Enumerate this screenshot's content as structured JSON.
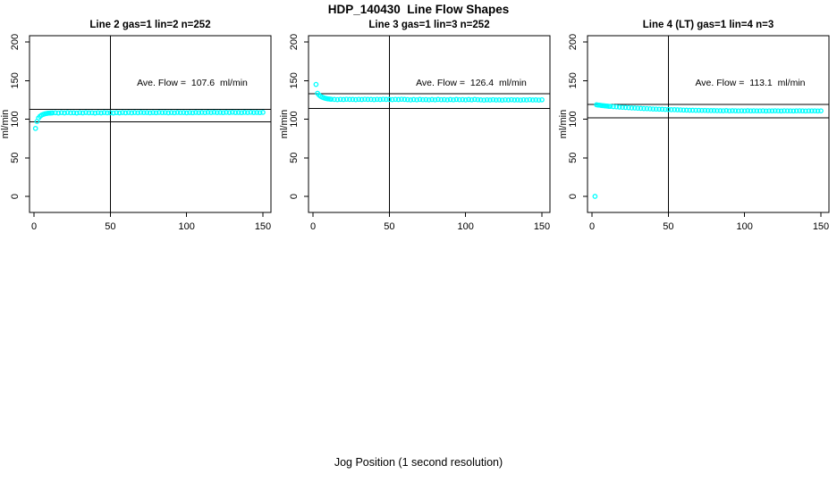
{
  "title": "HDP_140430  Line Flow Shapes",
  "xlabel": "Jog Position (1 second resolution)",
  "colors": {
    "points": "#00FFFF",
    "axis": "#000000",
    "background": "#ffffff"
  },
  "chart_data": [
    {
      "type": "scatter",
      "title": "Line 2 gas=1 lin=2 n=252",
      "n": 252,
      "ylabel": "ml/min",
      "ave_flow": 107.6,
      "ave_flow_label": "Ave. Flow =  107.6  ml/min",
      "xlim": [
        0,
        150
      ],
      "ylim": [
        0,
        200
      ],
      "xticks": [
        0,
        50,
        100,
        150
      ],
      "yticks": [
        0,
        50,
        100,
        150,
        200
      ],
      "vline_x": 50,
      "ref_lines": [
        113.0,
        96.8
      ],
      "points": [
        [
          1,
          88
        ],
        [
          2,
          97
        ],
        [
          3,
          101.5
        ],
        [
          4,
          103.8
        ],
        [
          5,
          105.2
        ],
        [
          6,
          106.1
        ],
        [
          7,
          106.8
        ],
        [
          8,
          107.3
        ],
        [
          9,
          107.6
        ],
        [
          10,
          107.9
        ],
        [
          11,
          108.0
        ],
        [
          12,
          108.1
        ],
        [
          14,
          108.3
        ],
        [
          16,
          108.0
        ],
        [
          18,
          108.4
        ],
        [
          20,
          108.1
        ],
        [
          22,
          108.5
        ],
        [
          24,
          108.2
        ],
        [
          26,
          108.3
        ],
        [
          28,
          108.0
        ],
        [
          30,
          108.4
        ],
        [
          32,
          108.1
        ],
        [
          34,
          108.5
        ],
        [
          36,
          108.2
        ],
        [
          38,
          108.3
        ],
        [
          40,
          108.0
        ],
        [
          42,
          108.4
        ],
        [
          44,
          108.1
        ],
        [
          46,
          108.5
        ],
        [
          48,
          108.2
        ],
        [
          50,
          108.3
        ],
        [
          52,
          108.0
        ],
        [
          54,
          108.4
        ],
        [
          56,
          108.1
        ],
        [
          58,
          108.5
        ],
        [
          60,
          108.2
        ],
        [
          62,
          108.5
        ],
        [
          64,
          108.2
        ],
        [
          66,
          108.6
        ],
        [
          68,
          108.3
        ],
        [
          70,
          108.7
        ],
        [
          72,
          108.4
        ],
        [
          74,
          108.5
        ],
        [
          76,
          108.2
        ],
        [
          78,
          108.6
        ],
        [
          80,
          108.3
        ],
        [
          82,
          108.7
        ],
        [
          84,
          108.4
        ],
        [
          86,
          108.5
        ],
        [
          88,
          108.2
        ],
        [
          90,
          108.6
        ],
        [
          92,
          108.3
        ],
        [
          94,
          108.7
        ],
        [
          96,
          108.4
        ],
        [
          98,
          108.5
        ],
        [
          100,
          108.2
        ],
        [
          102,
          108.6
        ],
        [
          104,
          108.3
        ],
        [
          106,
          108.7
        ],
        [
          108,
          108.4
        ],
        [
          110,
          108.7
        ],
        [
          112,
          108.4
        ],
        [
          114,
          108.8
        ],
        [
          116,
          108.5
        ],
        [
          118,
          108.9
        ],
        [
          120,
          108.6
        ],
        [
          122,
          108.7
        ],
        [
          124,
          108.4
        ],
        [
          126,
          108.8
        ],
        [
          128,
          108.5
        ],
        [
          130,
          108.9
        ],
        [
          132,
          108.6
        ],
        [
          134,
          108.7
        ],
        [
          136,
          108.4
        ],
        [
          138,
          108.8
        ],
        [
          140,
          108.5
        ],
        [
          142,
          108.9
        ],
        [
          144,
          108.6
        ],
        [
          146,
          108.7
        ],
        [
          148,
          108.4
        ],
        [
          150,
          108.8
        ]
      ]
    },
    {
      "type": "scatter",
      "title": "Line 3 gas=1 lin=3 n=252",
      "n": 252,
      "ylabel": "ml/min",
      "ave_flow": 126.4,
      "ave_flow_label": "Ave. Flow =  126.4  ml/min",
      "xlim": [
        0,
        150
      ],
      "ylim": [
        0,
        200
      ],
      "xticks": [
        0,
        50,
        100,
        150
      ],
      "yticks": [
        0,
        50,
        100,
        150,
        200
      ],
      "vline_x": 50,
      "ref_lines": [
        132.7,
        113.8
      ],
      "points": [
        [
          2,
          145
        ],
        [
          3,
          133.5
        ],
        [
          4,
          131.2
        ],
        [
          5,
          129.6
        ],
        [
          6,
          128.5
        ],
        [
          7,
          127.7
        ],
        [
          8,
          127.1
        ],
        [
          9,
          126.6
        ],
        [
          10,
          126.3
        ],
        [
          11,
          126.0
        ],
        [
          12,
          125.8
        ],
        [
          14,
          125.6
        ],
        [
          16,
          125.3
        ],
        [
          18,
          125.7
        ],
        [
          20,
          125.4
        ],
        [
          22,
          125.8
        ],
        [
          24,
          125.5
        ],
        [
          26,
          125.6
        ],
        [
          28,
          125.3
        ],
        [
          30,
          125.7
        ],
        [
          32,
          125.4
        ],
        [
          34,
          125.8
        ],
        [
          36,
          125.5
        ],
        [
          38,
          125.6
        ],
        [
          40,
          125.3
        ],
        [
          42,
          125.7
        ],
        [
          44,
          125.4
        ],
        [
          46,
          125.8
        ],
        [
          48,
          125.5
        ],
        [
          50,
          125.6
        ],
        [
          52,
          125.3
        ],
        [
          54,
          125.7
        ],
        [
          56,
          125.4
        ],
        [
          58,
          125.8
        ],
        [
          60,
          125.5
        ],
        [
          62,
          125.3
        ],
        [
          64,
          125.0
        ],
        [
          66,
          125.4
        ],
        [
          68,
          125.1
        ],
        [
          70,
          125.5
        ],
        [
          72,
          125.2
        ],
        [
          74,
          125.3
        ],
        [
          76,
          125.0
        ],
        [
          78,
          125.4
        ],
        [
          80,
          125.1
        ],
        [
          82,
          125.5
        ],
        [
          84,
          125.2
        ],
        [
          86,
          125.3
        ],
        [
          88,
          125.0
        ],
        [
          90,
          125.4
        ],
        [
          92,
          125.1
        ],
        [
          94,
          125.5
        ],
        [
          96,
          125.2
        ],
        [
          98,
          125.3
        ],
        [
          100,
          125.0
        ],
        [
          102,
          125.4
        ],
        [
          104,
          125.1
        ],
        [
          106,
          125.5
        ],
        [
          108,
          125.2
        ],
        [
          110,
          125.0
        ],
        [
          112,
          124.7
        ],
        [
          114,
          125.1
        ],
        [
          116,
          124.8
        ],
        [
          118,
          125.2
        ],
        [
          120,
          124.9
        ],
        [
          122,
          125.0
        ],
        [
          124,
          124.7
        ],
        [
          126,
          125.1
        ],
        [
          128,
          124.8
        ],
        [
          130,
          125.2
        ],
        [
          132,
          124.9
        ],
        [
          134,
          125.0
        ],
        [
          136,
          124.7
        ],
        [
          138,
          125.1
        ],
        [
          140,
          124.8
        ],
        [
          142,
          125.2
        ],
        [
          144,
          124.9
        ],
        [
          146,
          125.0
        ],
        [
          148,
          124.7
        ],
        [
          150,
          125.1
        ]
      ]
    },
    {
      "type": "scatter",
      "title": "Line 4 (LT) gas=1 lin=4 n=3",
      "n": 3,
      "ylabel": "ml/min",
      "ave_flow": 113.1,
      "ave_flow_label": "Ave. Flow =  113.1  ml/min",
      "xlim": [
        0,
        150
      ],
      "ylim": [
        0,
        200
      ],
      "xticks": [
        0,
        50,
        100,
        150
      ],
      "yticks": [
        0,
        50,
        100,
        150,
        200
      ],
      "vline_x": 50,
      "ref_lines": [
        118.8,
        101.8
      ],
      "points": [
        [
          2,
          0
        ],
        [
          3,
          118.6
        ],
        [
          4,
          118.3
        ],
        [
          5,
          118.1
        ],
        [
          6,
          117.8
        ],
        [
          7,
          117.6
        ],
        [
          8,
          117.3
        ],
        [
          9,
          117.1
        ],
        [
          10,
          116.9
        ],
        [
          11,
          116.7
        ],
        [
          12,
          116.5
        ],
        [
          14,
          116.2
        ],
        [
          16,
          115.9
        ],
        [
          18,
          115.6
        ],
        [
          20,
          115.4
        ],
        [
          22,
          115.1
        ],
        [
          24,
          114.9
        ],
        [
          26,
          114.6
        ],
        [
          28,
          114.4
        ],
        [
          30,
          114.2
        ],
        [
          32,
          114.0
        ],
        [
          34,
          113.8
        ],
        [
          36,
          113.6
        ],
        [
          38,
          113.4
        ],
        [
          40,
          113.2
        ],
        [
          42,
          113.1
        ],
        [
          44,
          112.9
        ],
        [
          46,
          112.8
        ],
        [
          48,
          112.6
        ],
        [
          50,
          112.5
        ],
        [
          52,
          112.3
        ],
        [
          54,
          112.2
        ],
        [
          56,
          112.1
        ],
        [
          58,
          112.0
        ],
        [
          60,
          111.8
        ],
        [
          62,
          111.7
        ],
        [
          64,
          111.6
        ],
        [
          66,
          111.6
        ],
        [
          68,
          111.5
        ],
        [
          70,
          111.4
        ],
        [
          72,
          111.3
        ],
        [
          74,
          111.3
        ],
        [
          76,
          111.2
        ],
        [
          78,
          111.1
        ],
        [
          80,
          111.1
        ],
        [
          82,
          111.0
        ],
        [
          84,
          111.0
        ],
        [
          86,
          110.9
        ],
        [
          88,
          111.1
        ],
        [
          90,
          110.8
        ],
        [
          92,
          111.0
        ],
        [
          94,
          110.9
        ],
        [
          96,
          110.7
        ],
        [
          98,
          110.9
        ],
        [
          100,
          110.8
        ],
        [
          102,
          111.0
        ],
        [
          104,
          110.7
        ],
        [
          106,
          110.9
        ],
        [
          108,
          110.8
        ],
        [
          110,
          110.7
        ],
        [
          112,
          110.9
        ],
        [
          114,
          110.6
        ],
        [
          116,
          110.8
        ],
        [
          118,
          110.7
        ],
        [
          120,
          110.9
        ],
        [
          122,
          110.8
        ],
        [
          124,
          110.6
        ],
        [
          126,
          110.9
        ],
        [
          128,
          110.7
        ],
        [
          130,
          110.8
        ],
        [
          132,
          110.6
        ],
        [
          134,
          110.7
        ],
        [
          136,
          110.9
        ],
        [
          138,
          110.8
        ],
        [
          140,
          110.6
        ],
        [
          142,
          110.8
        ],
        [
          144,
          110.7
        ],
        [
          146,
          110.8
        ],
        [
          148,
          110.6
        ],
        [
          150,
          110.7
        ]
      ]
    }
  ]
}
